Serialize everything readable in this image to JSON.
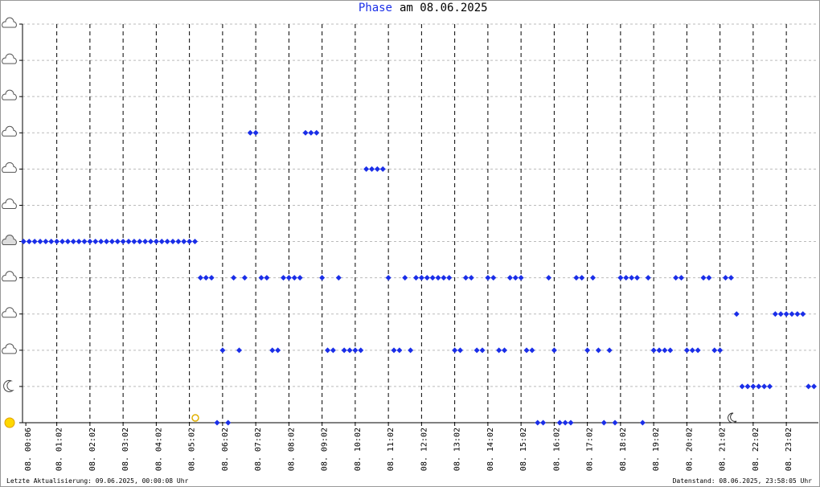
{
  "chart_data": {
    "type": "scatter",
    "title_highlight": "Phase",
    "title": "am 08.06.2025",
    "footer_left": "Letzte Aktualisierung: 09.06.2025, 00:00:08 Uhr",
    "footer_right": "Datenstand: 08.06.2025, 23:58:05 Uhr",
    "color": "#1a2ee8",
    "xlim": [
      0,
      1440
    ],
    "ylim": [
      0,
      11
    ],
    "yticks": [
      0,
      1,
      2,
      3,
      4,
      5,
      6,
      7,
      8,
      9,
      10,
      11
    ],
    "xticks": [
      {
        "value": 6,
        "label": "08. 00:06"
      },
      {
        "value": 62,
        "label": "08. 01:02"
      },
      {
        "value": 122,
        "label": "08. 02:02"
      },
      {
        "value": 182,
        "label": "08. 03:02"
      },
      {
        "value": 242,
        "label": "08. 04:02"
      },
      {
        "value": 302,
        "label": "08. 05:02"
      },
      {
        "value": 362,
        "label": "08. 06:02"
      },
      {
        "value": 422,
        "label": "08. 07:02"
      },
      {
        "value": 482,
        "label": "08. 08:02"
      },
      {
        "value": 542,
        "label": "08. 09:02"
      },
      {
        "value": 602,
        "label": "08. 10:02"
      },
      {
        "value": 662,
        "label": "08. 11:02"
      },
      {
        "value": 722,
        "label": "08. 12:02"
      },
      {
        "value": 782,
        "label": "08. 13:02"
      },
      {
        "value": 842,
        "label": "08. 14:02"
      },
      {
        "value": 902,
        "label": "08. 15:02"
      },
      {
        "value": 962,
        "label": "08. 16:02"
      },
      {
        "value": 1022,
        "label": "08. 17:02"
      },
      {
        "value": 1082,
        "label": "08. 18:02"
      },
      {
        "value": 1142,
        "label": "08. 19:02"
      },
      {
        "value": 1202,
        "label": "08. 20:02"
      },
      {
        "value": 1262,
        "label": "08. 21:02"
      },
      {
        "value": 1322,
        "label": "08. 22:02"
      },
      {
        "value": 1382,
        "label": "08. 23:02"
      }
    ],
    "x": [
      2,
      12,
      22,
      32,
      42,
      52,
      62,
      72,
      82,
      92,
      102,
      112,
      122,
      132,
      142,
      152,
      162,
      172,
      182,
      192,
      202,
      212,
      222,
      232,
      242,
      252,
      262,
      272,
      282,
      292,
      302,
      312,
      322,
      332,
      342,
      352,
      362,
      372,
      382,
      392,
      402,
      412,
      422,
      432,
      442,
      452,
      462,
      472,
      482,
      492,
      502,
      512,
      522,
      532,
      542,
      552,
      562,
      572,
      582,
      592,
      602,
      612,
      622,
      632,
      642,
      652,
      662,
      672,
      682,
      692,
      702,
      712,
      722,
      732,
      742,
      752,
      762,
      772,
      782,
      792,
      802,
      812,
      822,
      832,
      842,
      852,
      862,
      872,
      882,
      892,
      902,
      912,
      922,
      932,
      942,
      952,
      962,
      972,
      982,
      992,
      1002,
      1012,
      1022,
      1032,
      1042,
      1052,
      1062,
      1072,
      1082,
      1092,
      1102,
      1112,
      1122,
      1132,
      1142,
      1152,
      1162,
      1172,
      1182,
      1192,
      1202,
      1212,
      1222,
      1232,
      1242,
      1252,
      1262,
      1272,
      1282,
      1292,
      1302,
      1312,
      1322,
      1332,
      1342,
      1352,
      1362,
      1372,
      1382,
      1392,
      1402,
      1412,
      1422,
      1432
    ],
    "values": [
      5,
      5,
      5,
      5,
      5,
      5,
      5,
      5,
      5,
      5,
      5,
      5,
      5,
      5,
      5,
      5,
      5,
      5,
      5,
      5,
      5,
      5,
      5,
      5,
      5,
      5,
      5,
      5,
      5,
      5,
      5,
      5,
      4,
      4,
      4,
      0,
      2,
      0,
      4,
      2,
      4,
      8,
      8,
      4,
      4,
      2,
      2,
      4,
      4,
      4,
      4,
      8,
      8,
      8,
      4,
      2,
      2,
      4,
      2,
      2,
      2,
      2,
      7,
      7,
      7,
      7,
      4,
      2,
      2,
      4,
      2,
      4,
      4,
      4,
      4,
      4,
      4,
      4,
      2,
      2,
      4,
      4,
      2,
      2,
      4,
      4,
      2,
      2,
      4,
      4,
      4,
      2,
      2,
      0,
      0,
      4,
      2,
      0,
      0,
      0,
      4,
      4,
      2,
      4,
      2,
      0,
      2,
      0,
      4,
      4,
      4,
      4,
      0,
      4,
      2,
      2,
      2,
      2,
      4,
      4,
      2,
      2,
      2,
      4,
      4,
      2,
      2,
      4,
      4,
      3,
      1,
      1,
      1,
      1,
      1,
      1,
      3,
      3,
      3,
      3,
      3,
      3,
      1,
      1
    ]
  }
}
